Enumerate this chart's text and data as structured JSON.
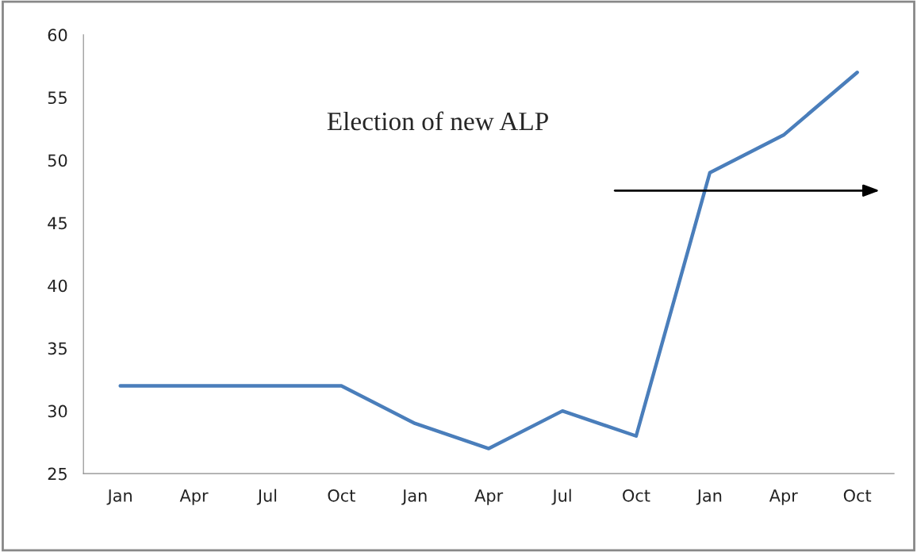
{
  "chart_data": {
    "type": "line",
    "categories": [
      "Jan",
      "Apr",
      "Jul",
      "Oct",
      "Jan",
      "Apr",
      "Jul",
      "Oct",
      "Jan",
      "Apr",
      "Oct"
    ],
    "series": [
      {
        "color": "#4a7ebb",
        "values": [
          32,
          32,
          32,
          32,
          29,
          27,
          30,
          28,
          49,
          52,
          57
        ]
      }
    ],
    "ylim": [
      25,
      60
    ],
    "yticks": [
      25,
      30,
      35,
      40,
      45,
      50,
      55,
      60
    ],
    "annotations": [
      "Election of new ALP"
    ],
    "grid": false,
    "legend": false,
    "marker": "none",
    "line_style": "solid"
  }
}
